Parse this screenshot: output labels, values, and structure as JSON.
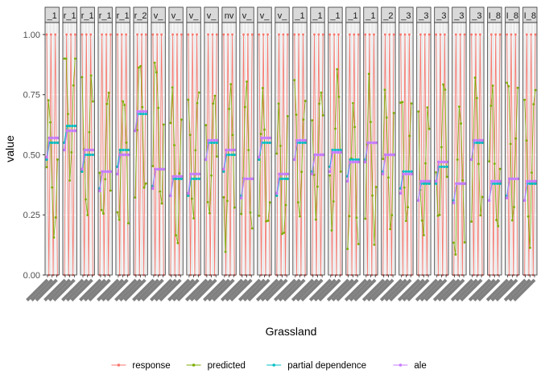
{
  "chart_data": {
    "type": "line",
    "title": "",
    "xlabel": "Grassland",
    "ylabel": "value",
    "ylim": [
      0,
      1.05
    ],
    "y_ticks": [
      "0.00",
      "0.25",
      "0.50",
      "0.75",
      "1.00"
    ],
    "y_tick_values": [
      0,
      0.25,
      0.5,
      0.75,
      1.0
    ],
    "facet_strips": [
      "_1",
      "r_1",
      "r_1",
      "r_1",
      "r_1",
      "r_2",
      "v_",
      "v_",
      "v_",
      "v_",
      "nv",
      "v_",
      "v_",
      "v_",
      "_1",
      "_1",
      "_1",
      "_1",
      "_1",
      "_2",
      "_3",
      "_3",
      "_3",
      "_3",
      "_3",
      "I_8",
      "I_8",
      "I_8"
    ],
    "grid": true,
    "legend_position": "bottom",
    "series": [
      {
        "name": "response",
        "color": "#F8766D",
        "style": "binary-oscillation",
        "values": [
          0,
          1,
          0,
          1,
          0,
          1,
          0,
          1,
          0,
          1,
          0,
          1
        ]
      },
      {
        "name": "predicted",
        "color": "#7CAE00",
        "style": "smooth-oscillation",
        "values": [
          0.1,
          0.25,
          0.5,
          0.75,
          0.8,
          0.55,
          0.3,
          0.15
        ]
      },
      {
        "name": "partial dependence",
        "color": "#00BFC4",
        "style": "flat",
        "values": [
          0.38,
          0.38,
          0.38,
          0.38,
          0.38,
          0.38
        ]
      },
      {
        "name": "ale",
        "color": "#C77CFF",
        "style": "flat",
        "values": [
          0.4,
          0.4,
          0.4,
          0.4,
          0.4,
          0.4
        ]
      }
    ],
    "facet_levels": [
      {
        "pd": 0.55,
        "ale": 0.57,
        "pred_center": 0.45
      },
      {
        "pd": 0.62,
        "ale": 0.6,
        "pred_center": 0.7
      },
      {
        "pd": 0.5,
        "ale": 0.52,
        "pred_center": 0.55
      },
      {
        "pd": 0.43,
        "ale": 0.43,
        "pred_center": 0.45
      },
      {
        "pd": 0.52,
        "ale": 0.5,
        "pred_center": 0.5
      },
      {
        "pd": 0.67,
        "ale": 0.68,
        "pred_center": 0.65
      },
      {
        "pd": 0.44,
        "ale": 0.44,
        "pred_center": 0.6
      },
      {
        "pd": 0.4,
        "ale": 0.41,
        "pred_center": 0.45
      },
      {
        "pd": 0.4,
        "ale": 0.42,
        "pred_center": 0.5
      },
      {
        "pd": 0.55,
        "ale": 0.56,
        "pred_center": 0.5
      },
      {
        "pd": 0.5,
        "ale": 0.52,
        "pred_center": 0.45
      },
      {
        "pd": 0.4,
        "ale": 0.4,
        "pred_center": 0.5
      },
      {
        "pd": 0.55,
        "ale": 0.57,
        "pred_center": 0.45
      },
      {
        "pd": 0.4,
        "ale": 0.42,
        "pred_center": 0.4
      },
      {
        "pd": 0.55,
        "ale": 0.56,
        "pred_center": 0.5
      },
      {
        "pd": 0.5,
        "ale": 0.5,
        "pred_center": 0.5
      },
      {
        "pd": 0.52,
        "ale": 0.51,
        "pred_center": 0.55
      },
      {
        "pd": 0.48,
        "ale": 0.47,
        "pred_center": 0.45
      },
      {
        "pd": 0.55,
        "ale": 0.55,
        "pred_center": 0.5
      },
      {
        "pd": 0.5,
        "ale": 0.5,
        "pred_center": 0.5
      },
      {
        "pd": 0.43,
        "ale": 0.42,
        "pred_center": 0.45
      },
      {
        "pd": 0.38,
        "ale": 0.39,
        "pred_center": 0.45
      },
      {
        "pd": 0.45,
        "ale": 0.47,
        "pred_center": 0.5
      },
      {
        "pd": 0.38,
        "ale": 0.38,
        "pred_center": 0.4
      },
      {
        "pd": 0.55,
        "ale": 0.56,
        "pred_center": 0.5
      },
      {
        "pd": 0.38,
        "ale": 0.39,
        "pred_center": 0.45
      },
      {
        "pd": 0.4,
        "ale": 0.4,
        "pred_center": 0.5
      },
      {
        "pd": 0.38,
        "ale": 0.39,
        "pred_center": 0.45
      }
    ]
  },
  "legend": {
    "items": [
      {
        "label": "response",
        "color": "#F8766D"
      },
      {
        "label": "predicted",
        "color": "#7CAE00"
      },
      {
        "label": "partial dependence",
        "color": "#00BFC4"
      },
      {
        "label": "ale",
        "color": "#C77CFF"
      }
    ]
  },
  "colors": {
    "panel_bg": "#EBEBEB",
    "strip_bg": "#D9D9D9",
    "grid": "#FFFFFF",
    "axis_text": "#4D4D4D",
    "frame": "#333333"
  }
}
